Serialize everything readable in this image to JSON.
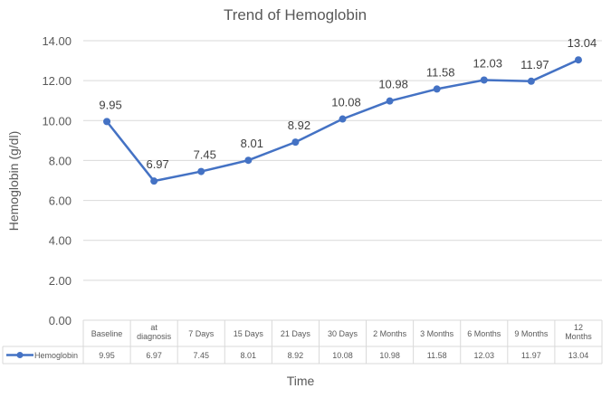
{
  "chart_data": {
    "type": "line",
    "title": "Trend of Hemoglobin",
    "xlabel": "Time",
    "ylabel": "Hemoglobin (g/dl)",
    "ylim": [
      0,
      14
    ],
    "ytick_step": 2,
    "ytick_labels": [
      "0.00",
      "2.00",
      "4.00",
      "6.00",
      "8.00",
      "10.00",
      "12.00",
      "14.00"
    ],
    "grid": true,
    "legend_placement": "bottom-left (data table)",
    "categories": [
      [
        "Baseline"
      ],
      [
        "at",
        "diagnosis"
      ],
      [
        "7 Days"
      ],
      [
        "15 Days"
      ],
      [
        "21 Days"
      ],
      [
        "30 Days"
      ],
      [
        "2 Months"
      ],
      [
        "3 Months"
      ],
      [
        "6 Months"
      ],
      [
        "9 Months"
      ],
      [
        "12",
        "Months"
      ]
    ],
    "series": [
      {
        "name": "Hemoglobin",
        "color": "#4472c4",
        "values": [
          9.95,
          6.97,
          7.45,
          8.01,
          8.92,
          10.08,
          10.98,
          11.58,
          12.03,
          11.97,
          13.04
        ],
        "labels": [
          "9.95",
          "6.97",
          "7.45",
          "8.01",
          "8.92",
          "10.08",
          "10.98",
          "11.58",
          "12.03",
          "11.97",
          "13.04"
        ]
      }
    ],
    "data_table_values": [
      "9.95",
      "6.97",
      "7.45",
      "8.01",
      "8.92",
      "10.08",
      "10.98",
      "11.58",
      "12.03",
      "11.97",
      "13.04"
    ]
  }
}
